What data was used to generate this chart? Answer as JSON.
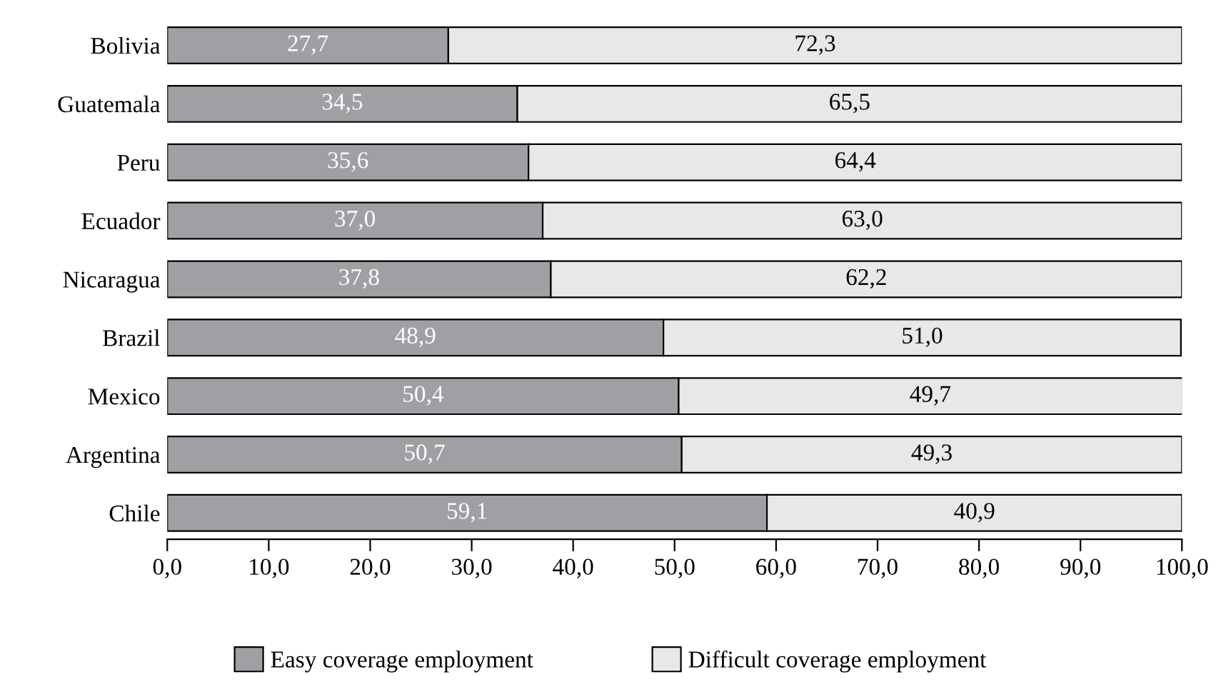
{
  "chart_data": {
    "type": "bar",
    "orientation": "horizontal",
    "stacked": true,
    "categories": [
      "Bolivia",
      "Guatemala",
      "Peru",
      "Ecuador",
      "Nicaragua",
      "Brazil",
      "Mexico",
      "Argentina",
      "Chile"
    ],
    "series": [
      {
        "name": "Easy coverage employment",
        "color": "#a0a0a4",
        "values": [
          27.7,
          34.5,
          35.6,
          37.0,
          37.8,
          48.9,
          50.4,
          50.7,
          59.1
        ],
        "value_labels": [
          "27,7",
          "34,5",
          "35,6",
          "37,0",
          "37,8",
          "48,9",
          "50,4",
          "50,7",
          "59,1"
        ]
      },
      {
        "name": "Difficult coverage employment",
        "color": "#e8e8e8",
        "values": [
          72.3,
          65.5,
          64.4,
          63.0,
          62.2,
          51.0,
          49.7,
          49.3,
          40.9
        ],
        "value_labels": [
          "72,3",
          "65,5",
          "64,4",
          "63,0",
          "62,2",
          "51,0",
          "49,7",
          "49,3",
          "40,9"
        ]
      }
    ],
    "xlim": [
      0,
      100
    ],
    "xticks": [
      {
        "value": 0,
        "label": "0,0"
      },
      {
        "value": 10,
        "label": "10,0"
      },
      {
        "value": 20,
        "label": "20,0"
      },
      {
        "value": 30,
        "label": "30,0"
      },
      {
        "value": 40,
        "label": "40,0"
      },
      {
        "value": 50,
        "label": "50,0"
      },
      {
        "value": 60,
        "label": "60,0"
      },
      {
        "value": 70,
        "label": "70,0"
      },
      {
        "value": 80,
        "label": "80,0"
      },
      {
        "value": 90,
        "label": "90,0"
      },
      {
        "value": 100,
        "label": "100,0"
      }
    ],
    "grid": false,
    "legend": "bottom"
  }
}
